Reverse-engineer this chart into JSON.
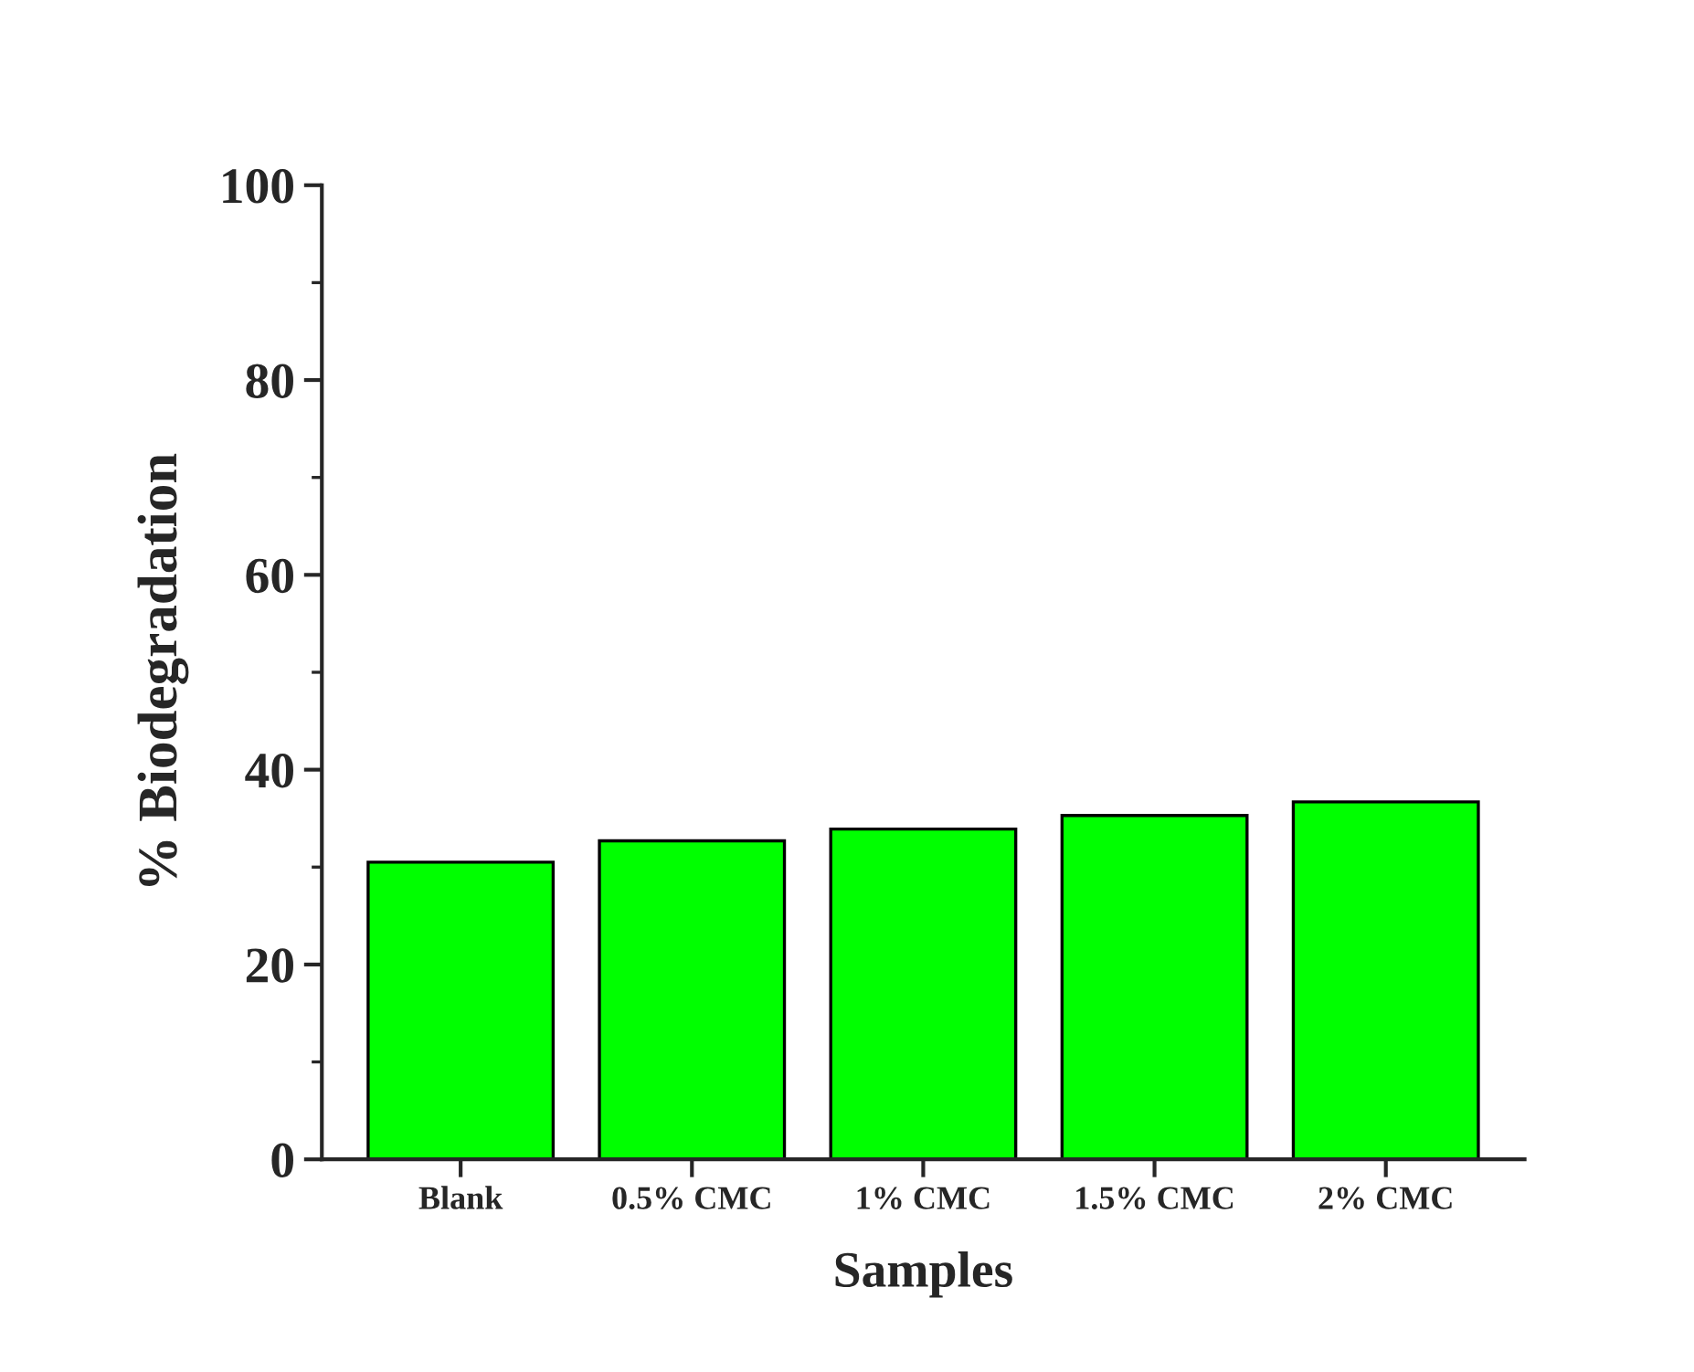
{
  "chart_data": {
    "type": "bar",
    "xlabel": "Samples",
    "ylabel": "% Biodegradation",
    "categories": [
      "Blank",
      "0.5% CMC",
      "1% CMC",
      "1.5% CMC",
      "2% CMC"
    ],
    "values": [
      30.5,
      32.7,
      33.9,
      35.3,
      36.7
    ],
    "color": "#00ff00",
    "ylim": [
      0,
      100
    ],
    "yticks": [
      0,
      20,
      40,
      60,
      80,
      100
    ],
    "grid": false
  }
}
